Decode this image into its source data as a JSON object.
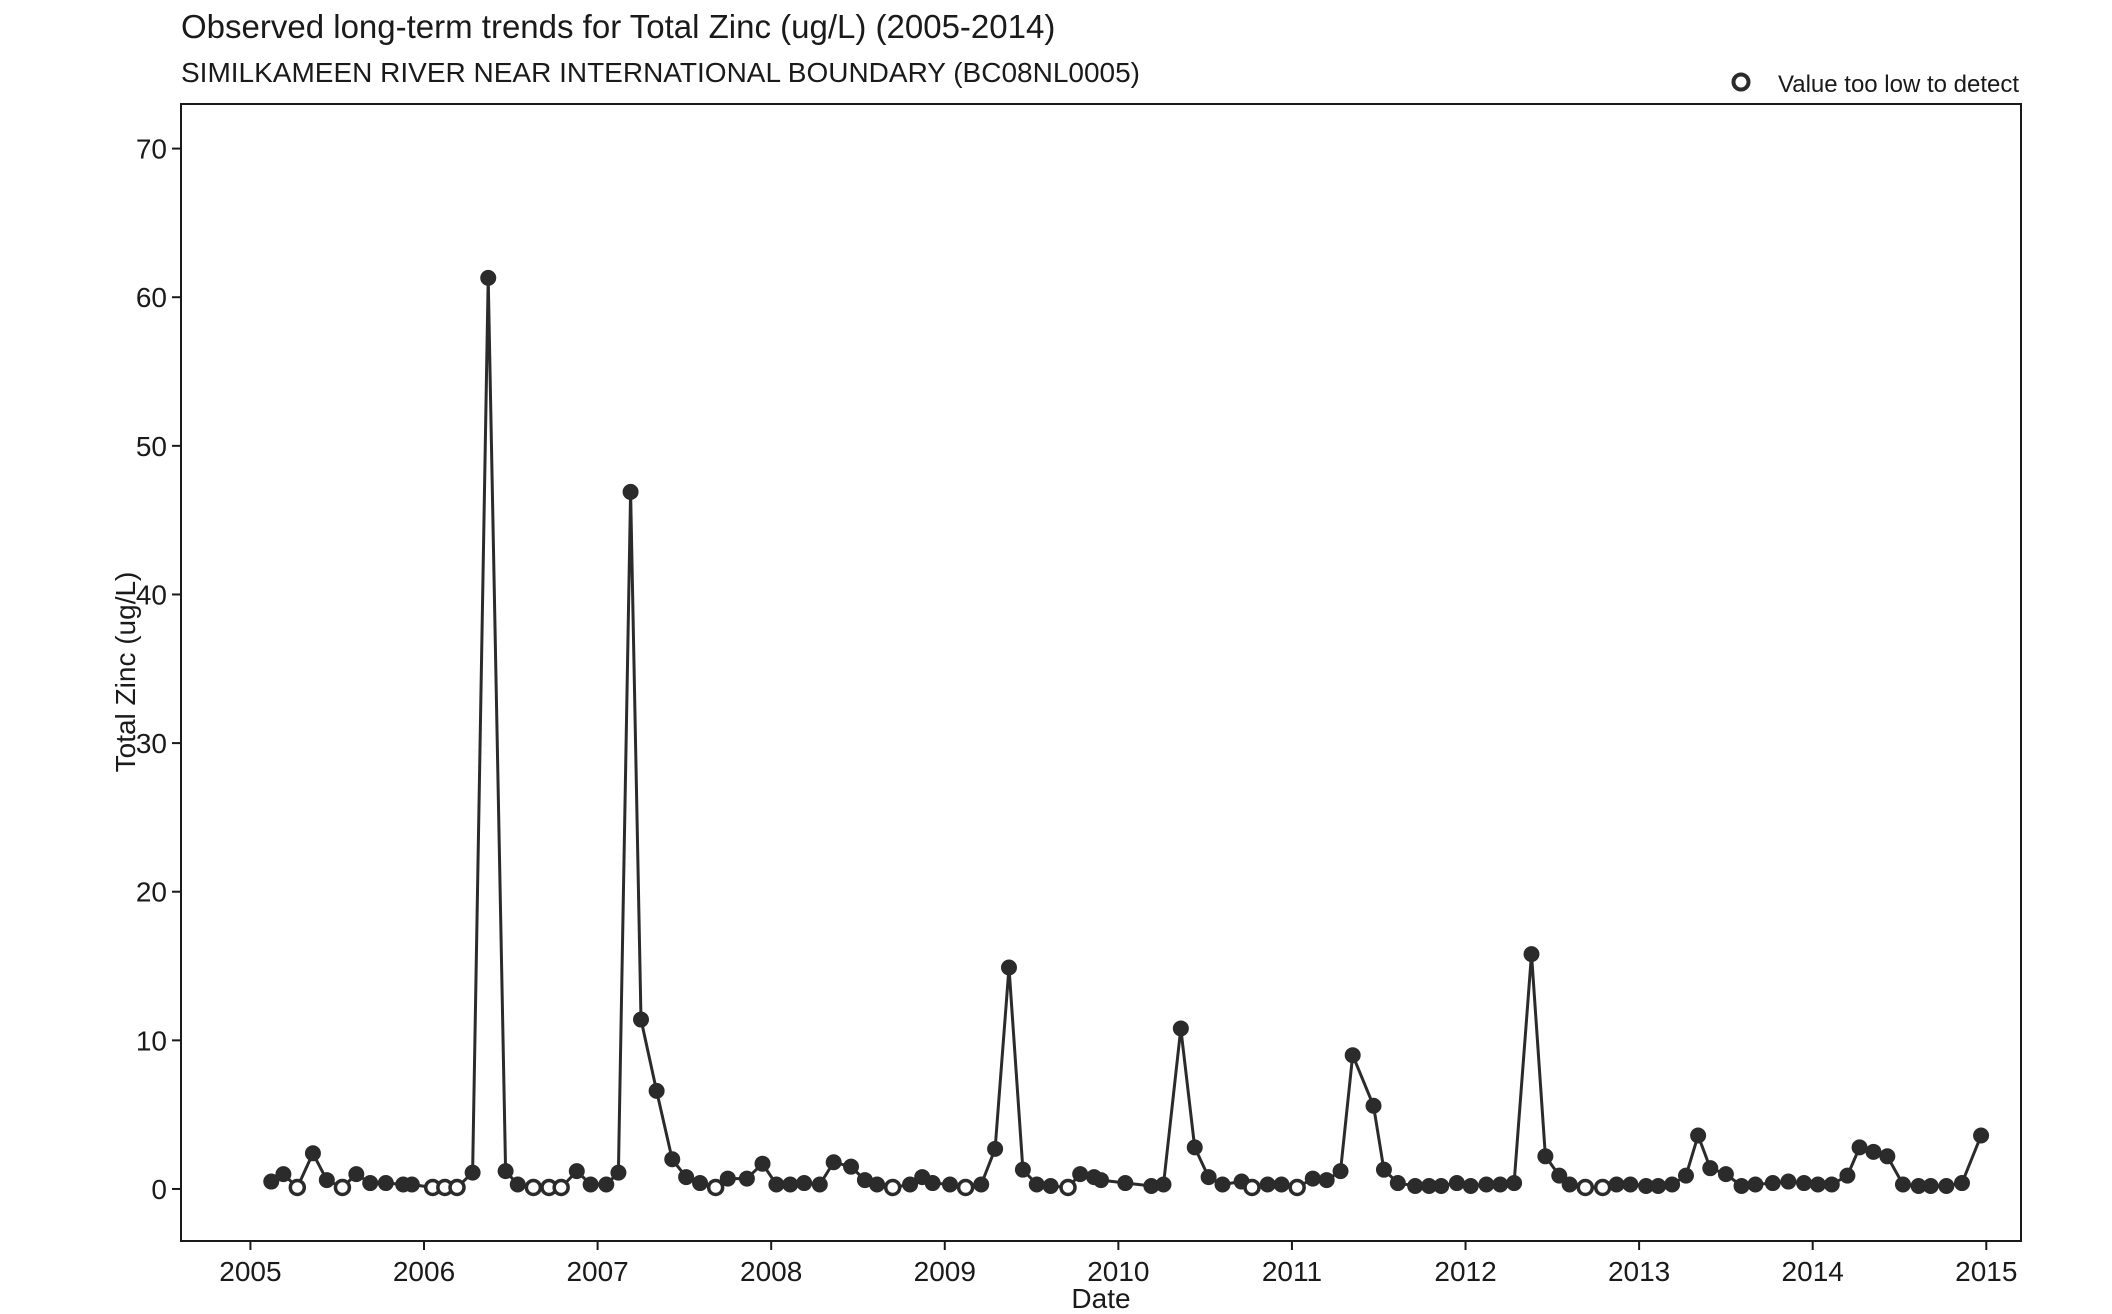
{
  "colors": {
    "series": "#2b2b2b",
    "axis": "#1a1a1a",
    "background": "#ffffff"
  },
  "chart_data": {
    "type": "scatter",
    "title": "Observed long-term trends for Total Zinc (ug/L) (2005-2014)",
    "subtitle": "SIMILKAMEEN RIVER NEAR INTERNATIONAL BOUNDARY (BC08NL0005)",
    "xlabel": "Date",
    "ylabel": "Total Zinc (ug/L)",
    "xlim": [
      2004.6,
      2015.2
    ],
    "ylim": [
      -3.5,
      73.0
    ],
    "grid": false,
    "legend_position": "top-right",
    "x_ticks": [
      2005,
      2006,
      2007,
      2008,
      2009,
      2010,
      2011,
      2012,
      2013,
      2014,
      2015
    ],
    "y_ticks": [
      0,
      10,
      20,
      30,
      40,
      50,
      60,
      70
    ],
    "series": [
      {
        "name": "Value too low to detect",
        "line": true,
        "points": [
          {
            "date": "2005-02",
            "x": 2005.12,
            "y": 0.5,
            "detected": true
          },
          {
            "date": "2005-03",
            "x": 2005.19,
            "y": 1.0,
            "detected": true
          },
          {
            "date": "2005-04",
            "x": 2005.27,
            "y": 0.1,
            "detected": false
          },
          {
            "date": "2005-05",
            "x": 2005.36,
            "y": 2.4,
            "detected": true
          },
          {
            "date": "2005-06",
            "x": 2005.44,
            "y": 0.6,
            "detected": true
          },
          {
            "date": "2005-07",
            "x": 2005.53,
            "y": 0.1,
            "detected": false
          },
          {
            "date": "2005-08",
            "x": 2005.61,
            "y": 1.0,
            "detected": true
          },
          {
            "date": "2005-09",
            "x": 2005.69,
            "y": 0.4,
            "detected": true
          },
          {
            "date": "2005-10",
            "x": 2005.78,
            "y": 0.4,
            "detected": true
          },
          {
            "date": "2005-11",
            "x": 2005.88,
            "y": 0.3,
            "detected": true
          },
          {
            "date": "2005-12",
            "x": 2005.93,
            "y": 0.3,
            "detected": true
          },
          {
            "date": "2006-01",
            "x": 2006.05,
            "y": 0.1,
            "detected": false
          },
          {
            "date": "2006-02",
            "x": 2006.12,
            "y": 0.1,
            "detected": false
          },
          {
            "date": "2006-03",
            "x": 2006.19,
            "y": 0.1,
            "detected": false
          },
          {
            "date": "2006-04",
            "x": 2006.28,
            "y": 1.1,
            "detected": true
          },
          {
            "date": "2006-05",
            "x": 2006.37,
            "y": 61.3,
            "detected": true
          },
          {
            "date": "2006-06",
            "x": 2006.47,
            "y": 1.2,
            "detected": true
          },
          {
            "date": "2006-07",
            "x": 2006.54,
            "y": 0.3,
            "detected": true
          },
          {
            "date": "2006-08",
            "x": 2006.63,
            "y": 0.1,
            "detected": false
          },
          {
            "date": "2006-09",
            "x": 2006.72,
            "y": 0.1,
            "detected": false
          },
          {
            "date": "2006-10",
            "x": 2006.79,
            "y": 0.1,
            "detected": false
          },
          {
            "date": "2006-11",
            "x": 2006.88,
            "y": 1.2,
            "detected": true
          },
          {
            "date": "2006-12",
            "x": 2006.96,
            "y": 0.3,
            "detected": true
          },
          {
            "date": "2007-01",
            "x": 2007.05,
            "y": 0.3,
            "detected": true
          },
          {
            "date": "2007-02",
            "x": 2007.12,
            "y": 1.1,
            "detected": true
          },
          {
            "date": "2007-03",
            "x": 2007.19,
            "y": 46.9,
            "detected": true
          },
          {
            "date": "2007-04",
            "x": 2007.25,
            "y": 11.4,
            "detected": true
          },
          {
            "date": "2007-05",
            "x": 2007.34,
            "y": 6.6,
            "detected": true
          },
          {
            "date": "2007-06",
            "x": 2007.43,
            "y": 2.0,
            "detected": true
          },
          {
            "date": "2007-07",
            "x": 2007.51,
            "y": 0.8,
            "detected": true
          },
          {
            "date": "2007-08",
            "x": 2007.59,
            "y": 0.4,
            "detected": true
          },
          {
            "date": "2007-09",
            "x": 2007.68,
            "y": 0.1,
            "detected": false
          },
          {
            "date": "2007-10",
            "x": 2007.75,
            "y": 0.7,
            "detected": true
          },
          {
            "date": "2007-11",
            "x": 2007.86,
            "y": 0.7,
            "detected": true
          },
          {
            "date": "2007-12",
            "x": 2007.95,
            "y": 1.7,
            "detected": true
          },
          {
            "date": "2008-01",
            "x": 2008.03,
            "y": 0.3,
            "detected": true
          },
          {
            "date": "2008-02",
            "x": 2008.11,
            "y": 0.3,
            "detected": true
          },
          {
            "date": "2008-03",
            "x": 2008.19,
            "y": 0.4,
            "detected": true
          },
          {
            "date": "2008-04",
            "x": 2008.28,
            "y": 0.3,
            "detected": true
          },
          {
            "date": "2008-05",
            "x": 2008.36,
            "y": 1.8,
            "detected": true
          },
          {
            "date": "2008-06",
            "x": 2008.46,
            "y": 1.5,
            "detected": true
          },
          {
            "date": "2008-07",
            "x": 2008.54,
            "y": 0.6,
            "detected": true
          },
          {
            "date": "2008-08",
            "x": 2008.61,
            "y": 0.3,
            "detected": true
          },
          {
            "date": "2008-09",
            "x": 2008.7,
            "y": 0.1,
            "detected": false
          },
          {
            "date": "2008-10",
            "x": 2008.8,
            "y": 0.3,
            "detected": true
          },
          {
            "date": "2008-11",
            "x": 2008.87,
            "y": 0.8,
            "detected": true
          },
          {
            "date": "2008-12",
            "x": 2008.93,
            "y": 0.4,
            "detected": true
          },
          {
            "date": "2009-01",
            "x": 2009.03,
            "y": 0.3,
            "detected": true
          },
          {
            "date": "2009-02",
            "x": 2009.12,
            "y": 0.1,
            "detected": false
          },
          {
            "date": "2009-03",
            "x": 2009.21,
            "y": 0.3,
            "detected": true
          },
          {
            "date": "2009-04",
            "x": 2009.29,
            "y": 2.7,
            "detected": true
          },
          {
            "date": "2009-05",
            "x": 2009.37,
            "y": 14.9,
            "detected": true
          },
          {
            "date": "2009-06",
            "x": 2009.45,
            "y": 1.3,
            "detected": true
          },
          {
            "date": "2009-07",
            "x": 2009.53,
            "y": 0.3,
            "detected": true
          },
          {
            "date": "2009-08",
            "x": 2009.61,
            "y": 0.2,
            "detected": true
          },
          {
            "date": "2009-09",
            "x": 2009.71,
            "y": 0.1,
            "detected": false
          },
          {
            "date": "2009-10",
            "x": 2009.78,
            "y": 1.0,
            "detected": true
          },
          {
            "date": "2009-11",
            "x": 2009.86,
            "y": 0.8,
            "detected": true
          },
          {
            "date": "2009-12",
            "x": 2009.9,
            "y": 0.6,
            "detected": true
          },
          {
            "date": "2010-01",
            "x": 2010.04,
            "y": 0.4,
            "detected": true
          },
          {
            "date": "2010-03",
            "x": 2010.19,
            "y": 0.2,
            "detected": true
          },
          {
            "date": "2010-04",
            "x": 2010.26,
            "y": 0.3,
            "detected": true
          },
          {
            "date": "2010-05",
            "x": 2010.36,
            "y": 10.8,
            "detected": true
          },
          {
            "date": "2010-06",
            "x": 2010.44,
            "y": 2.8,
            "detected": true
          },
          {
            "date": "2010-07",
            "x": 2010.52,
            "y": 0.8,
            "detected": true
          },
          {
            "date": "2010-08",
            "x": 2010.6,
            "y": 0.3,
            "detected": true
          },
          {
            "date": "2010-09",
            "x": 2010.71,
            "y": 0.5,
            "detected": true
          },
          {
            "date": "2010-10",
            "x": 2010.77,
            "y": 0.1,
            "detected": false
          },
          {
            "date": "2010-11",
            "x": 2010.86,
            "y": 0.3,
            "detected": true
          },
          {
            "date": "2010-12",
            "x": 2010.94,
            "y": 0.3,
            "detected": true
          },
          {
            "date": "2011-01",
            "x": 2011.03,
            "y": 0.1,
            "detected": false
          },
          {
            "date": "2011-02",
            "x": 2011.12,
            "y": 0.7,
            "detected": true
          },
          {
            "date": "2011-03",
            "x": 2011.2,
            "y": 0.6,
            "detected": true
          },
          {
            "date": "2011-04",
            "x": 2011.28,
            "y": 1.2,
            "detected": true
          },
          {
            "date": "2011-05",
            "x": 2011.35,
            "y": 9.0,
            "detected": true
          },
          {
            "date": "2011-06",
            "x": 2011.47,
            "y": 5.6,
            "detected": true
          },
          {
            "date": "2011-07",
            "x": 2011.53,
            "y": 1.3,
            "detected": true
          },
          {
            "date": "2011-08",
            "x": 2011.61,
            "y": 0.4,
            "detected": true
          },
          {
            "date": "2011-09",
            "x": 2011.71,
            "y": 0.2,
            "detected": true
          },
          {
            "date": "2011-10",
            "x": 2011.79,
            "y": 0.2,
            "detected": true
          },
          {
            "date": "2011-11",
            "x": 2011.86,
            "y": 0.2,
            "detected": true
          },
          {
            "date": "2011-12",
            "x": 2011.95,
            "y": 0.4,
            "detected": true
          },
          {
            "date": "2012-01",
            "x": 2012.03,
            "y": 0.2,
            "detected": true
          },
          {
            "date": "2012-02",
            "x": 2012.12,
            "y": 0.3,
            "detected": true
          },
          {
            "date": "2012-03",
            "x": 2012.2,
            "y": 0.3,
            "detected": true
          },
          {
            "date": "2012-04",
            "x": 2012.28,
            "y": 0.4,
            "detected": true
          },
          {
            "date": "2012-05",
            "x": 2012.38,
            "y": 15.8,
            "detected": true
          },
          {
            "date": "2012-06",
            "x": 2012.46,
            "y": 2.2,
            "detected": true
          },
          {
            "date": "2012-07",
            "x": 2012.54,
            "y": 0.9,
            "detected": true
          },
          {
            "date": "2012-08",
            "x": 2012.6,
            "y": 0.3,
            "detected": true
          },
          {
            "date": "2012-09",
            "x": 2012.69,
            "y": 0.1,
            "detected": false
          },
          {
            "date": "2012-10",
            "x": 2012.79,
            "y": 0.1,
            "detected": false
          },
          {
            "date": "2012-11",
            "x": 2012.87,
            "y": 0.3,
            "detected": true
          },
          {
            "date": "2012-12",
            "x": 2012.95,
            "y": 0.3,
            "detected": true
          },
          {
            "date": "2013-01",
            "x": 2013.04,
            "y": 0.2,
            "detected": true
          },
          {
            "date": "2013-02",
            "x": 2013.11,
            "y": 0.2,
            "detected": true
          },
          {
            "date": "2013-03",
            "x": 2013.19,
            "y": 0.3,
            "detected": true
          },
          {
            "date": "2013-04",
            "x": 2013.27,
            "y": 0.9,
            "detected": true
          },
          {
            "date": "2013-05",
            "x": 2013.34,
            "y": 3.6,
            "detected": true
          },
          {
            "date": "2013-06",
            "x": 2013.41,
            "y": 1.4,
            "detected": true
          },
          {
            "date": "2013-07",
            "x": 2013.5,
            "y": 1.0,
            "detected": true
          },
          {
            "date": "2013-08",
            "x": 2013.59,
            "y": 0.2,
            "detected": true
          },
          {
            "date": "2013-09",
            "x": 2013.67,
            "y": 0.3,
            "detected": true
          },
          {
            "date": "2013-10",
            "x": 2013.77,
            "y": 0.4,
            "detected": true
          },
          {
            "date": "2013-11",
            "x": 2013.86,
            "y": 0.5,
            "detected": true
          },
          {
            "date": "2013-12",
            "x": 2013.95,
            "y": 0.4,
            "detected": true
          },
          {
            "date": "2014-01",
            "x": 2014.03,
            "y": 0.3,
            "detected": true
          },
          {
            "date": "2014-02",
            "x": 2014.11,
            "y": 0.3,
            "detected": true
          },
          {
            "date": "2014-03",
            "x": 2014.2,
            "y": 0.9,
            "detected": true
          },
          {
            "date": "2014-04",
            "x": 2014.27,
            "y": 2.8,
            "detected": true
          },
          {
            "date": "2014-05",
            "x": 2014.35,
            "y": 2.5,
            "detected": true
          },
          {
            "date": "2014-06",
            "x": 2014.43,
            "y": 2.2,
            "detected": true
          },
          {
            "date": "2014-07",
            "x": 2014.52,
            "y": 0.3,
            "detected": true
          },
          {
            "date": "2014-08",
            "x": 2014.61,
            "y": 0.2,
            "detected": true
          },
          {
            "date": "2014-09",
            "x": 2014.68,
            "y": 0.2,
            "detected": true
          },
          {
            "date": "2014-10",
            "x": 2014.77,
            "y": 0.2,
            "detected": true
          },
          {
            "date": "2014-11",
            "x": 2014.86,
            "y": 0.4,
            "detected": true
          },
          {
            "date": "2014-12",
            "x": 2014.97,
            "y": 3.6,
            "detected": true
          }
        ]
      }
    ]
  }
}
